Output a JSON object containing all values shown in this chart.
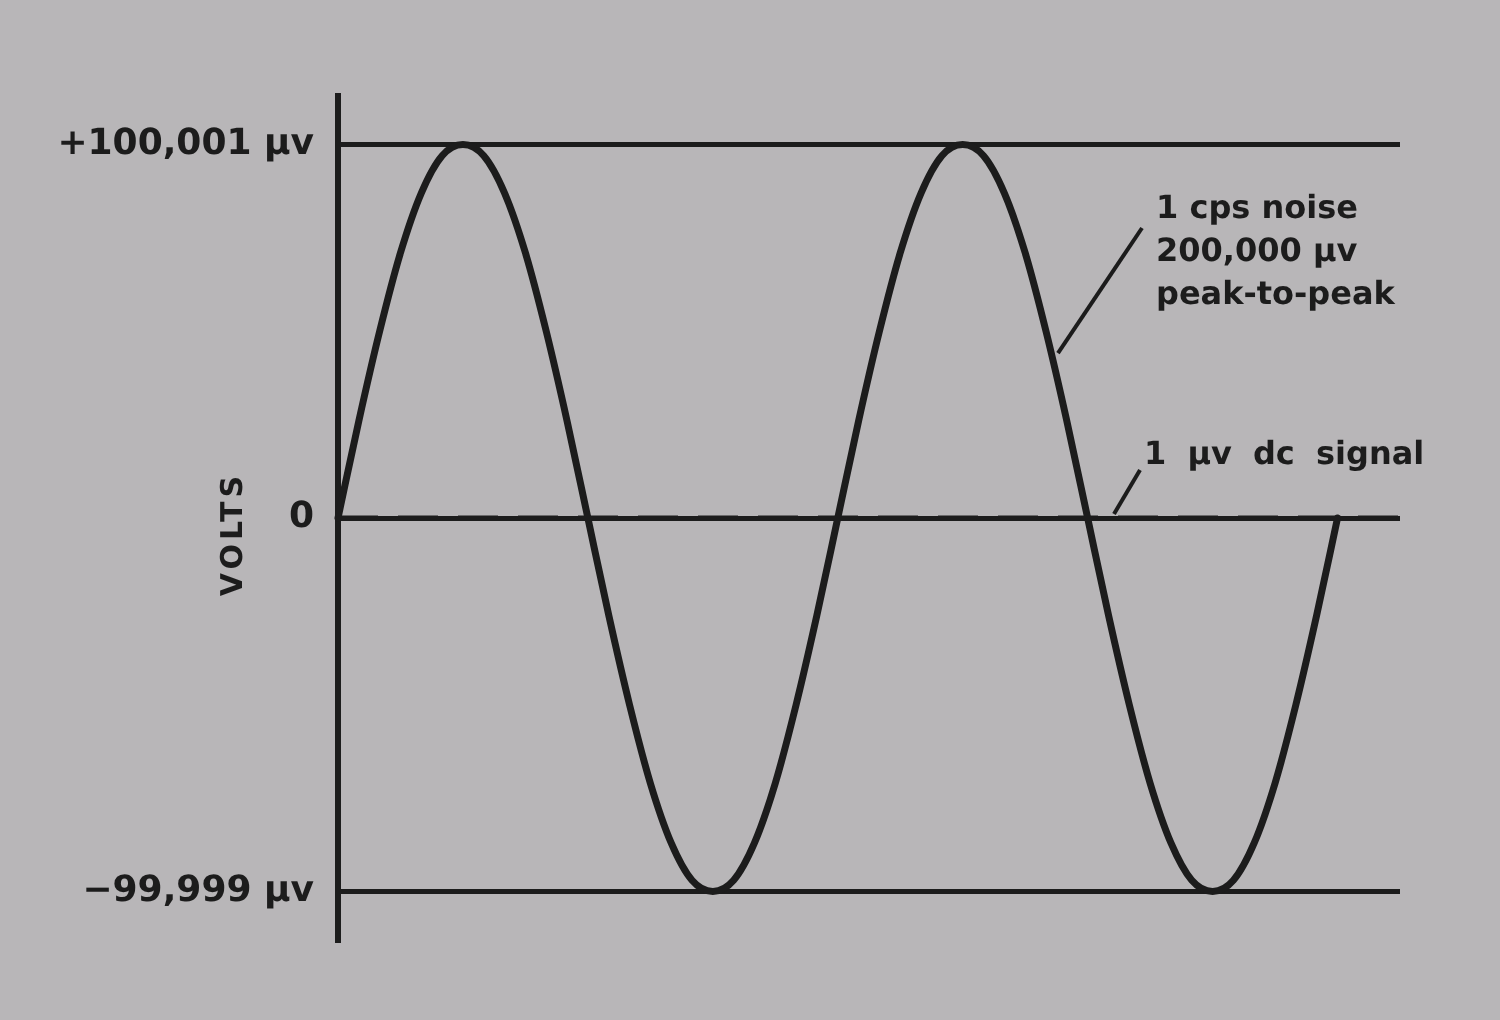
{
  "chart_data": {
    "type": "line",
    "ylabel": "VOLTS",
    "categories": [
      null,
      null,
      null,
      null,
      null,
      null,
      null,
      null,
      null,
      null,
      null,
      null,
      null,
      null,
      null,
      null,
      null,
      null,
      null,
      null,
      null,
      null,
      null,
      null,
      null,
      null,
      null,
      null,
      null,
      null,
      null,
      null,
      null,
      null,
      null,
      null,
      null,
      null,
      null,
      null,
      null,
      null,
      null,
      null,
      null,
      null,
      null,
      null,
      null,
      null,
      null,
      null
    ],
    "series": [
      {
        "color": "#1c1c1c",
        "values": [
          1,
          26000,
          50000,
          71000,
          87000,
          97000,
          100001,
          97000,
          87000,
          71000,
          50000,
          26000,
          1,
          -26000,
          -50000,
          -71000,
          -87000,
          -97000,
          -99999,
          -97000,
          -87000,
          -71000,
          -50000,
          -26000,
          1,
          26000,
          50000,
          71000,
          87000,
          97000,
          100001,
          97000,
          87000,
          71000,
          50000,
          26000,
          1,
          -26000,
          -50000,
          -71000,
          -87000,
          -97000,
          -99999,
          -97000,
          -87000,
          -71000,
          -50000,
          -26000,
          1,
          null,
          null,
          null
        ]
      }
    ],
    "ylim": [
      -113000,
      113000
    ],
    "yticks": [
      {
        "value": 100001,
        "label": "+100,001 µv"
      },
      0,
      {
        "value": -99999,
        "label": "−99,999 µv"
      }
    ],
    "grid": "y",
    "tick_labels": "y",
    "ref_lines": [
      {
        "axis": "y",
        "value": 1,
        "label": "1 µv dc signal",
        "color": "#1c1c1c",
        "line_style": "dashed"
      }
    ],
    "annotations": [
      "1 cps noise\n200,000 µv\npeak-to-peak"
    ]
  }
}
